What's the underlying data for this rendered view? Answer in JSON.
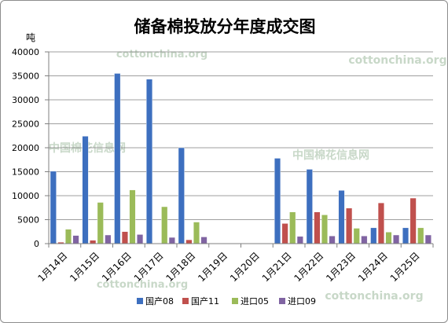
{
  "chart_data": {
    "type": "bar",
    "title": "储备棉投放分年度成交图",
    "ylabel": "吨",
    "xlabel": "",
    "ylim": [
      0,
      40000
    ],
    "yticks": [
      0,
      5000,
      10000,
      15000,
      20000,
      25000,
      30000,
      35000,
      40000
    ],
    "grid": true,
    "legend_position": "bottom",
    "categories": [
      "1月14日",
      "1月15日",
      "1月16日",
      "1月17日",
      "1月18日",
      "1月19日",
      "1月20日",
      "1月21日",
      "1月22日",
      "1月23日",
      "1月24日",
      "1月25日"
    ],
    "series": [
      {
        "name": "国产08",
        "color": "#3d6fbf",
        "values": [
          15100,
          22400,
          35500,
          34300,
          20000,
          0,
          0,
          17800,
          15500,
          11100,
          3300,
          3300
        ]
      },
      {
        "name": "国产11",
        "color": "#c0504d",
        "values": [
          300,
          700,
          2500,
          0,
          800,
          0,
          0,
          4200,
          6600,
          7400,
          8500,
          9500
        ]
      },
      {
        "name": "进口05",
        "color": "#9bbb59",
        "values": [
          3000,
          8600,
          11200,
          7700,
          4500,
          0,
          0,
          6600,
          6000,
          3200,
          2400,
          3300
        ]
      },
      {
        "name": "进口09",
        "color": "#8064a2",
        "values": [
          1700,
          1800,
          1900,
          1300,
          1400,
          0,
          0,
          1500,
          1600,
          1600,
          1800,
          1800
        ]
      }
    ]
  },
  "watermarks": [
    "cottonchina.org",
    "cottonchina.org",
    "中国棉花信息网",
    "中国棉花信息网",
    "cottonchina.org",
    "cottonchina.org"
  ]
}
